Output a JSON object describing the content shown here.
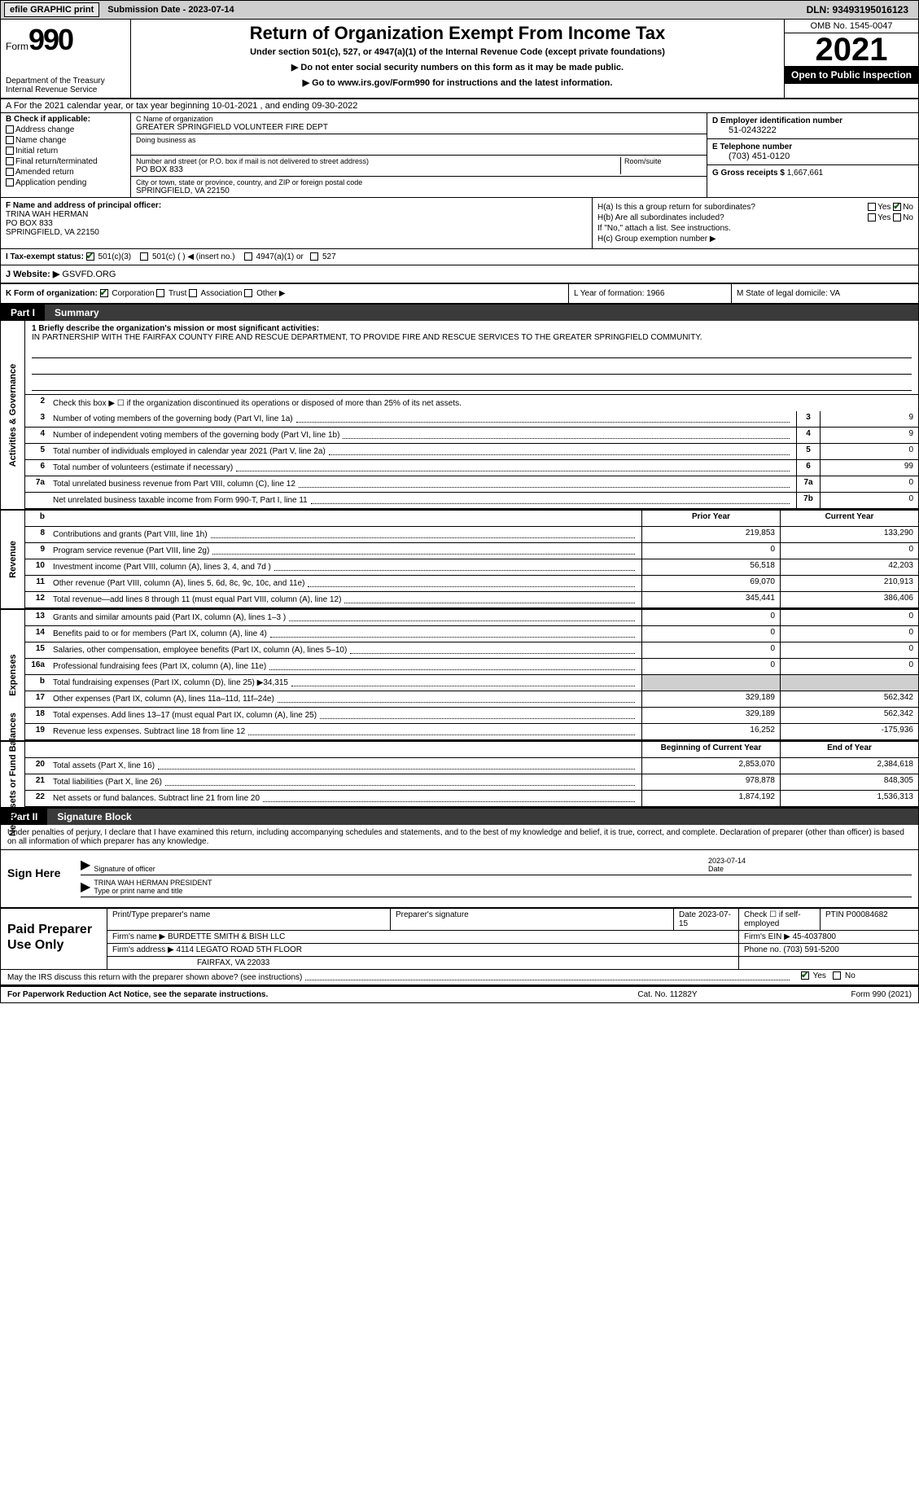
{
  "topbar": {
    "efile": "efile GRAPHIC print",
    "submission": "Submission Date - 2023-07-14",
    "dln": "DLN: 93493195016123"
  },
  "header": {
    "form_word": "Form",
    "form_num": "990",
    "dept": "Department of the Treasury Internal Revenue Service",
    "title": "Return of Organization Exempt From Income Tax",
    "sub1": "Under section 501(c), 527, or 4947(a)(1) of the Internal Revenue Code (except private foundations)",
    "sub2a": "▶ Do not enter social security numbers on this form as it may be made public.",
    "sub2b": "▶ Go to www.irs.gov/Form990 for instructions and the latest information.",
    "omb": "OMB No. 1545-0047",
    "year": "2021",
    "inspect": "Open to Public Inspection"
  },
  "row_a": "A For the 2021 calendar year, or tax year beginning 10-01-2021   , and ending 09-30-2022",
  "col_b": {
    "title": "B Check if applicable:",
    "items": [
      "Address change",
      "Name change",
      "Initial return",
      "Final return/terminated",
      "Amended return",
      "Application pending"
    ]
  },
  "col_c": {
    "name_lbl": "C Name of organization",
    "name": "GREATER SPRINGFIELD VOLUNTEER FIRE DEPT",
    "dba_lbl": "Doing business as",
    "addr_lbl": "Number and street (or P.O. box if mail is not delivered to street address)",
    "room_lbl": "Room/suite",
    "addr": "PO BOX 833",
    "city_lbl": "City or town, state or province, country, and ZIP or foreign postal code",
    "city": "SPRINGFIELD, VA  22150"
  },
  "col_d": {
    "ein_lbl": "D Employer identification number",
    "ein": "51-0243222",
    "tel_lbl": "E Telephone number",
    "tel": "(703) 451-0120",
    "gross_lbl": "G Gross receipts $",
    "gross": "1,667,661"
  },
  "col_f": {
    "lbl": "F Name and address of principal officer:",
    "name": "TRINA WAH HERMAN",
    "addr1": "PO BOX 833",
    "addr2": "SPRINGFIELD, VA  22150"
  },
  "col_h": {
    "ha": "H(a)  Is this a group return for subordinates?",
    "hb": "H(b)  Are all subordinates included?",
    "hb_note": "If \"No,\" attach a list. See instructions.",
    "hc": "H(c)  Group exemption number ▶"
  },
  "row_i": {
    "lbl": "I   Tax-exempt status:",
    "opts": [
      "501(c)(3)",
      "501(c) (  ) ◀ (insert no.)",
      "4947(a)(1) or",
      "527"
    ]
  },
  "row_j": {
    "lbl": "J   Website: ▶",
    "val": "GSVFD.ORG"
  },
  "row_k": {
    "k1_lbl": "K Form of organization:",
    "k1_opts": [
      "Corporation",
      "Trust",
      "Association",
      "Other ▶"
    ],
    "k2": "L Year of formation: 1966",
    "k3": "M State of legal domicile: VA"
  },
  "part1": {
    "num": "Part I",
    "title": "Summary"
  },
  "mission": {
    "lbl": "1   Briefly describe the organization's mission or most significant activities:",
    "txt": "IN PARTNERSHIP WITH THE FAIRFAX COUNTY FIRE AND RESCUE DEPARTMENT, TO PROVIDE FIRE AND RESCUE SERVICES TO THE GREATER SPRINGFIELD COMMUNITY."
  },
  "line2": "Check this box ▶ ☐ if the organization discontinued its operations or disposed of more than 25% of its net assets.",
  "governance": [
    {
      "n": "3",
      "t": "Number of voting members of the governing body (Part VI, line 1a)",
      "bn": "3",
      "v": "9"
    },
    {
      "n": "4",
      "t": "Number of independent voting members of the governing body (Part VI, line 1b)",
      "bn": "4",
      "v": "9"
    },
    {
      "n": "5",
      "t": "Total number of individuals employed in calendar year 2021 (Part V, line 2a)",
      "bn": "5",
      "v": "0"
    },
    {
      "n": "6",
      "t": "Total number of volunteers (estimate if necessary)",
      "bn": "6",
      "v": "99"
    },
    {
      "n": "7a",
      "t": "Total unrelated business revenue from Part VIII, column (C), line 12",
      "bn": "7a",
      "v": "0"
    },
    {
      "n": "",
      "t": "Net unrelated business taxable income from Form 990-T, Part I, line 11",
      "bn": "7b",
      "v": "0"
    }
  ],
  "rev_hdr": {
    "prior": "Prior Year",
    "curr": "Current Year"
  },
  "revenue": [
    {
      "n": "8",
      "t": "Contributions and grants (Part VIII, line 1h)",
      "p": "219,853",
      "c": "133,290"
    },
    {
      "n": "9",
      "t": "Program service revenue (Part VIII, line 2g)",
      "p": "0",
      "c": "0"
    },
    {
      "n": "10",
      "t": "Investment income (Part VIII, column (A), lines 3, 4, and 7d )",
      "p": "56,518",
      "c": "42,203"
    },
    {
      "n": "11",
      "t": "Other revenue (Part VIII, column (A), lines 5, 6d, 8c, 9c, 10c, and 11e)",
      "p": "69,070",
      "c": "210,913"
    },
    {
      "n": "12",
      "t": "Total revenue—add lines 8 through 11 (must equal Part VIII, column (A), line 12)",
      "p": "345,441",
      "c": "386,406"
    }
  ],
  "expenses": [
    {
      "n": "13",
      "t": "Grants and similar amounts paid (Part IX, column (A), lines 1–3 )",
      "p": "0",
      "c": "0"
    },
    {
      "n": "14",
      "t": "Benefits paid to or for members (Part IX, column (A), line 4)",
      "p": "0",
      "c": "0"
    },
    {
      "n": "15",
      "t": "Salaries, other compensation, employee benefits (Part IX, column (A), lines 5–10)",
      "p": "0",
      "c": "0"
    },
    {
      "n": "16a",
      "t": "Professional fundraising fees (Part IX, column (A), line 11e)",
      "p": "0",
      "c": "0"
    },
    {
      "n": "b",
      "t": "Total fundraising expenses (Part IX, column (D), line 25) ▶34,315",
      "p": "",
      "c": "",
      "shade": true
    },
    {
      "n": "17",
      "t": "Other expenses (Part IX, column (A), lines 11a–11d, 11f–24e)",
      "p": "329,189",
      "c": "562,342"
    },
    {
      "n": "18",
      "t": "Total expenses. Add lines 13–17 (must equal Part IX, column (A), line 25)",
      "p": "329,189",
      "c": "562,342"
    },
    {
      "n": "19",
      "t": "Revenue less expenses. Subtract line 18 from line 12",
      "p": "16,252",
      "c": "-175,936"
    }
  ],
  "net_hdr": {
    "prior": "Beginning of Current Year",
    "curr": "End of Year"
  },
  "netassets": [
    {
      "n": "20",
      "t": "Total assets (Part X, line 16)",
      "p": "2,853,070",
      "c": "2,384,618"
    },
    {
      "n": "21",
      "t": "Total liabilities (Part X, line 26)",
      "p": "978,878",
      "c": "848,305"
    },
    {
      "n": "22",
      "t": "Net assets or fund balances. Subtract line 21 from line 20",
      "p": "1,874,192",
      "c": "1,536,313"
    }
  ],
  "part2": {
    "num": "Part II",
    "title": "Signature Block"
  },
  "sig_intro": "Under penalties of perjury, I declare that I have examined this return, including accompanying schedules and statements, and to the best of my knowledge and belief, it is true, correct, and complete. Declaration of preparer (other than officer) is based on all information of which preparer has any knowledge.",
  "sign": {
    "here": "Sign Here",
    "sig_lbl": "Signature of officer",
    "date": "2023-07-14",
    "date_lbl": "Date",
    "name": "TRINA WAH HERMAN  PRESIDENT",
    "name_lbl": "Type or print name and title"
  },
  "prep": {
    "title": "Paid Preparer Use Only",
    "r1": {
      "c1": "Print/Type preparer's name",
      "c2": "Preparer's signature",
      "c3": "Date 2023-07-15",
      "c4": "Check ☐ if self-employed",
      "c5": "PTIN P00084682"
    },
    "r2": {
      "c1": "Firm's name    ▶ BURDETTE SMITH & BISH LLC",
      "c2": "Firm's EIN ▶ 45-4037800"
    },
    "r3": {
      "c1": "Firm's address ▶ 4114 LEGATO ROAD 5TH FLOOR",
      "c2": "Phone no. (703) 591-5200"
    },
    "r3b": "FAIRFAX, VA  22033"
  },
  "may_irs": "May the IRS discuss this return with the preparer shown above? (see instructions)",
  "footer": {
    "f1": "For Paperwork Reduction Act Notice, see the separate instructions.",
    "f2": "Cat. No. 11282Y",
    "f3": "Form 990 (2021)"
  },
  "sides": {
    "gov": "Activities & Governance",
    "rev": "Revenue",
    "exp": "Expenses",
    "net": "Net Assets or Fund Balances"
  }
}
